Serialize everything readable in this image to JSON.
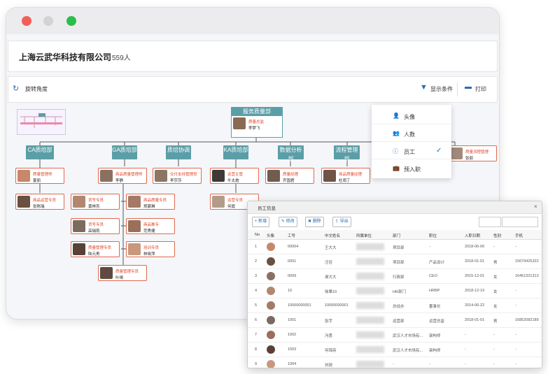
{
  "header": {
    "company": "上海云武华科技有限公司",
    "count": "559人"
  },
  "toolbar": {
    "rotate": "旋转角度",
    "display": "显示条件",
    "print": "打印"
  },
  "dropdown": {
    "items": [
      "头像",
      "人数",
      "员工",
      "预入职"
    ]
  },
  "org": {
    "root": {
      "name": "服务质量部",
      "role": "质量总监",
      "person": "李梦飞"
    },
    "departments": [
      "CA质培部",
      "GA质培部",
      "质培协调",
      "KA质培部",
      "数据分析部",
      "流程管理部"
    ],
    "cards": [
      {
        "role": "质量管理师",
        "person": "夏丽"
      },
      {
        "role": "商品运营专员",
        "person": "张陈瑞"
      },
      {
        "role": "商品质量管理师",
        "person": "李静"
      },
      {
        "role": "货号专员",
        "person": "黄林芳"
      },
      {
        "role": "商品质量专员",
        "person": "郑慕琳"
      },
      {
        "role": "货号专员",
        "person": "高瑞雨"
      },
      {
        "role": "商品推专",
        "person": "范秀捷"
      },
      {
        "role": "质量管理专员",
        "person": "陆元男"
      },
      {
        "role": "培训专员",
        "person": "林晓萍"
      },
      {
        "role": "质量管理专员",
        "person": "叶晴"
      },
      {
        "role": "交付支持管理员",
        "person": "李莎莎"
      },
      {
        "role": "运营主管",
        "person": "牛太炮"
      },
      {
        "role": "运营专员",
        "person": "何霞"
      },
      {
        "role": "质量经理",
        "person": "齐国君"
      },
      {
        "role": "商品质量经理",
        "person": "杜雨丁"
      },
      {
        "role": "质量流程管理",
        "person": "张丽"
      }
    ]
  },
  "table": {
    "title": "员工信息",
    "buttons": [
      "新增",
      "修改",
      "删除",
      "导出"
    ],
    "columns": [
      "No",
      "头像",
      "工号",
      "中文姓名",
      "所属单位",
      "部门",
      "职位",
      "入职日期",
      "性别",
      "手机"
    ],
    "rows": [
      {
        "no": 1,
        "id": "00004",
        "name": "王大大",
        "dept": "项目部",
        "position": "-",
        "date": "2018-06-06",
        "gender": "-",
        "phone": "-"
      },
      {
        "no": 2,
        "id": "0001",
        "name": "汪佳",
        "dept": "项目部",
        "position": "产品设计",
        "date": "2018-01-01",
        "gender": "男",
        "phone": "15679425322"
      },
      {
        "no": 3,
        "id": "0009",
        "name": "谢大大",
        "dept": "行政部",
        "position": "CEO",
        "date": "2015-12-01",
        "gender": "女",
        "phone": "16451321313"
      },
      {
        "no": 4,
        "id": "10",
        "name": "徐果10",
        "dept": "HR部门",
        "position": "HRBP",
        "date": "2018-12-19",
        "gender": "女",
        "phone": "-"
      },
      {
        "no": 5,
        "id": "10000000001",
        "name": "10000000001",
        "dept": "总经办",
        "position": "董事长",
        "date": "2014-06-22",
        "gender": "女",
        "phone": "-"
      },
      {
        "no": 6,
        "id": "1001",
        "name": "张宇",
        "dept": "运营部",
        "position": "运营总监",
        "date": "2018-01-01",
        "gender": "男",
        "phone": "16852082189"
      },
      {
        "no": 7,
        "id": "1002",
        "name": "冯勇",
        "dept": "武汉人才市场有...",
        "position": "架构师",
        "date": "-",
        "gender": "-",
        "phone": "-"
      },
      {
        "no": 8,
        "id": "1003",
        "name": "何锦亮",
        "dept": "武汉人才市场有...",
        "position": "架构师",
        "date": "-",
        "gender": "-",
        "phone": "-"
      },
      {
        "no": 9,
        "id": "1004",
        "name": "刘锐",
        "dept": "-",
        "position": "-",
        "date": "-",
        "gender": "-",
        "phone": "-"
      }
    ]
  }
}
